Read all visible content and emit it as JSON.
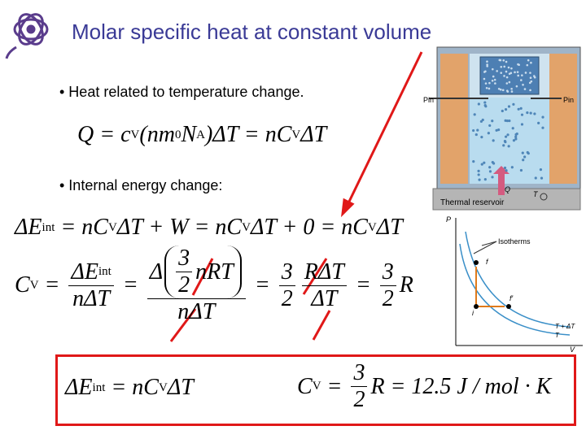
{
  "title": "Molar specific heat at constant volume",
  "bullets": [
    "• Heat related to temperature change.",
    "• Internal energy change:"
  ],
  "equations": {
    "heat": [
      "Q = c",
      {
        "sub": "V"
      },
      "(nm",
      {
        "sub": "0"
      },
      "N",
      {
        "sub": "A"
      },
      ")ΔT = nC",
      {
        "sub": "V"
      },
      "ΔT"
    ],
    "energy": [
      "ΔE",
      {
        "sub": "int"
      },
      " = nC",
      {
        "sub": "V"
      },
      "ΔT + W = nC",
      {
        "sub": "V"
      },
      "ΔT + 0 = nC",
      {
        "sub": "V"
      },
      "ΔT"
    ],
    "specific_heat": [
      "C",
      {
        "sub": "V"
      },
      " = ",
      {
        "frac": [
          [
            "ΔE",
            {
              "sub": "int"
            }
          ],
          [
            "nΔT"
          ]
        ]
      },
      " = ",
      {
        "frac": [
          [
            "Δ",
            {
              "paren": [
                {
                  "frac": [
                    [
                      "3"
                    ],
                    [
                      "2"
                    ]
                  ]
                },
                "nRT"
              ]
            }
          ],
          [
            "nΔT"
          ]
        ]
      },
      " = ",
      {
        "frac": [
          [
            "3"
          ],
          [
            "2"
          ]
        ]
      },
      {
        "frac": [
          [
            "RΔT"
          ],
          [
            "ΔT"
          ]
        ]
      },
      " = ",
      {
        "frac": [
          [
            "3"
          ],
          [
            "2"
          ]
        ]
      },
      "R"
    ],
    "result_energy": [
      "ΔE",
      {
        "sub": "int"
      },
      " = nC",
      {
        "sub": "V"
      },
      "ΔT"
    ],
    "result_cv": [
      "C",
      {
        "sub": "V"
      },
      " = ",
      {
        "frac": [
          [
            "3"
          ],
          [
            "2"
          ]
        ]
      },
      "R = 12.5 J / mol · K"
    ]
  },
  "cylinder_figure": {
    "pin_left": "Pin",
    "pin_right": "Pin",
    "heat": "Q",
    "temperature": "T",
    "reservoir": "Thermal reservoir"
  },
  "pv_figure": {
    "p_axis": "P",
    "v_axis": "V",
    "isotherms": "Isotherms",
    "final": "f",
    "final_prime": "f′",
    "initial": "i",
    "hot_isotherm": "T + ΔT",
    "cold_isotherm": "T"
  }
}
